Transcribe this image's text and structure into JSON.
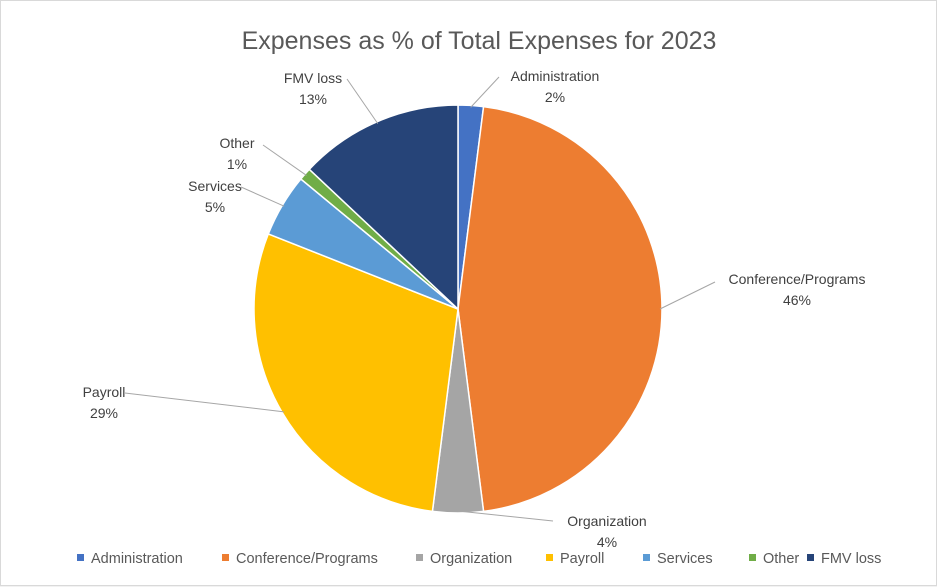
{
  "chart_data": {
    "type": "pie",
    "title": "Expenses as % of Total Expenses for 2023",
    "legend_position": "bottom",
    "slices": [
      {
        "name": "Administration",
        "value": 2,
        "label": "2%",
        "color": "#4472c4"
      },
      {
        "name": "Conference/Programs",
        "value": 46,
        "label": "46%",
        "color": "#ed7d31"
      },
      {
        "name": "Organization",
        "value": 4,
        "label": "4%",
        "color": "#a5a5a5"
      },
      {
        "name": "Payroll",
        "value": 29,
        "label": "29%",
        "color": "#ffc000"
      },
      {
        "name": "Services",
        "value": 5,
        "label": "5%",
        "color": "#5b9bd5"
      },
      {
        "name": "Other",
        "value": 1,
        "label": "1%",
        "color": "#70ad47"
      },
      {
        "name": "FMV loss",
        "value": 13,
        "label": "13%",
        "color": "#264478"
      }
    ]
  }
}
